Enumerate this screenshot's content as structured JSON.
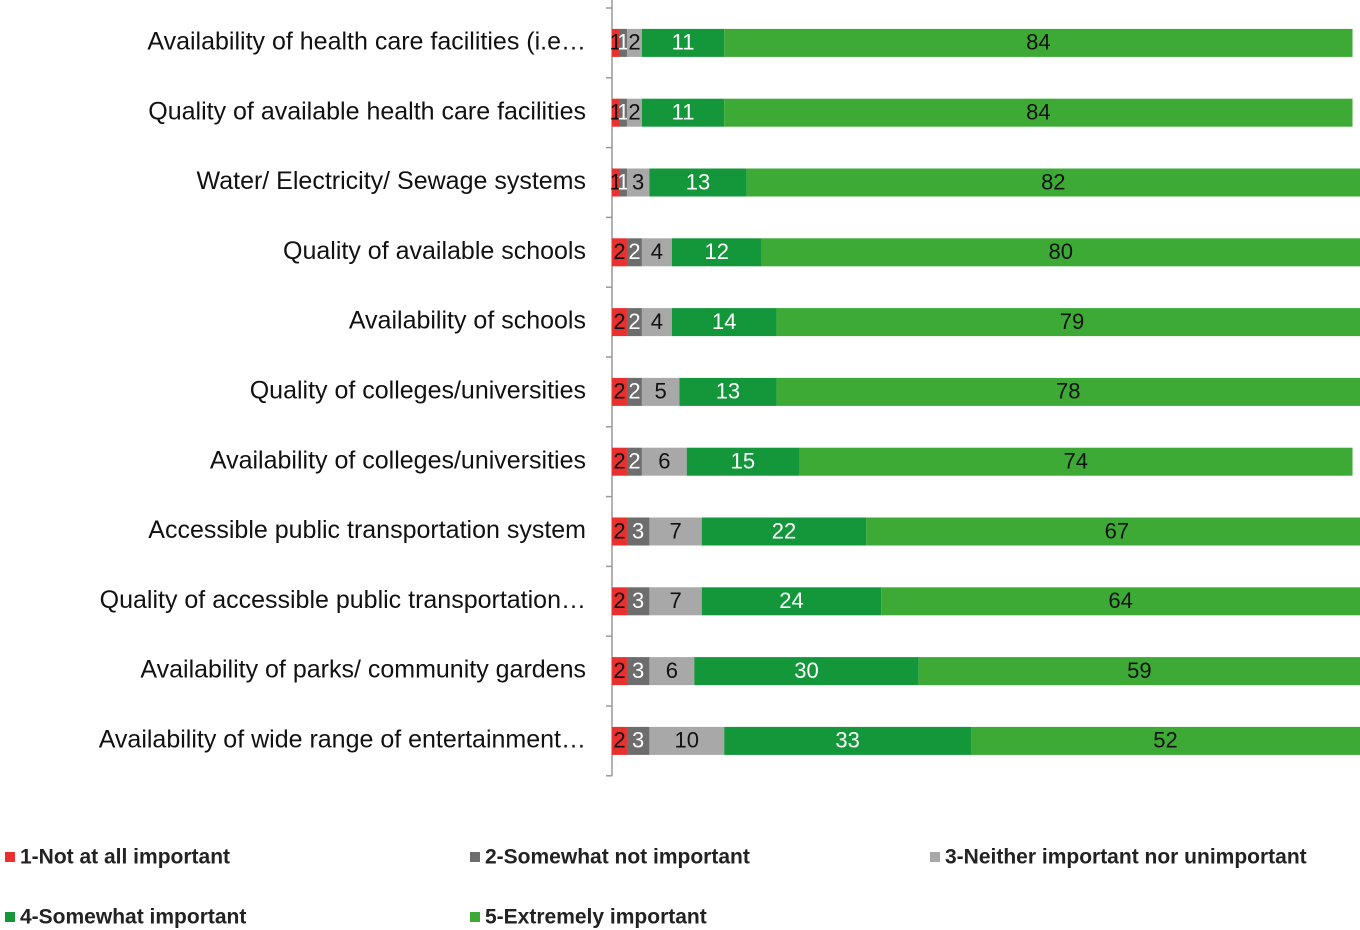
{
  "chart_data": {
    "type": "stacked-barh",
    "categories": [
      "Availability of health care facilities (i.e…",
      "Quality of available health care facilities",
      "Water/ Electricity/ Sewage systems",
      "Quality of available schools",
      "Availability of schools",
      "Quality of colleges/universities",
      "Availability of colleges/universities",
      "Accessible public transportation system",
      "Quality of accessible public transportation…",
      "Availability of parks/ community gardens",
      "Availability of wide range of entertainment…"
    ],
    "series": [
      {
        "name": "1-Not at all important",
        "color": "#e8312f",
        "values": [
          1,
          1,
          1,
          2,
          2,
          2,
          2,
          2,
          2,
          2,
          2
        ]
      },
      {
        "name": "2-Somewhat not important",
        "color": "#6d6d6d",
        "values": [
          1,
          1,
          1,
          2,
          2,
          2,
          2,
          3,
          3,
          3,
          3
        ]
      },
      {
        "name": "3-Neither important nor unimportant",
        "color": "#a8a8a8",
        "values": [
          2,
          2,
          3,
          4,
          4,
          5,
          6,
          7,
          7,
          6,
          10
        ]
      },
      {
        "name": "4-Somewhat important",
        "color": "#13973a",
        "values": [
          11,
          11,
          13,
          12,
          14,
          13,
          15,
          22,
          24,
          30,
          33
        ]
      },
      {
        "name": "5-Extremely important",
        "color": "#3caa35",
        "values": [
          84,
          84,
          82,
          80,
          79,
          78,
          74,
          67,
          64,
          59,
          52
        ]
      }
    ],
    "xlim": [
      0,
      100
    ],
    "legend": "bottom"
  }
}
